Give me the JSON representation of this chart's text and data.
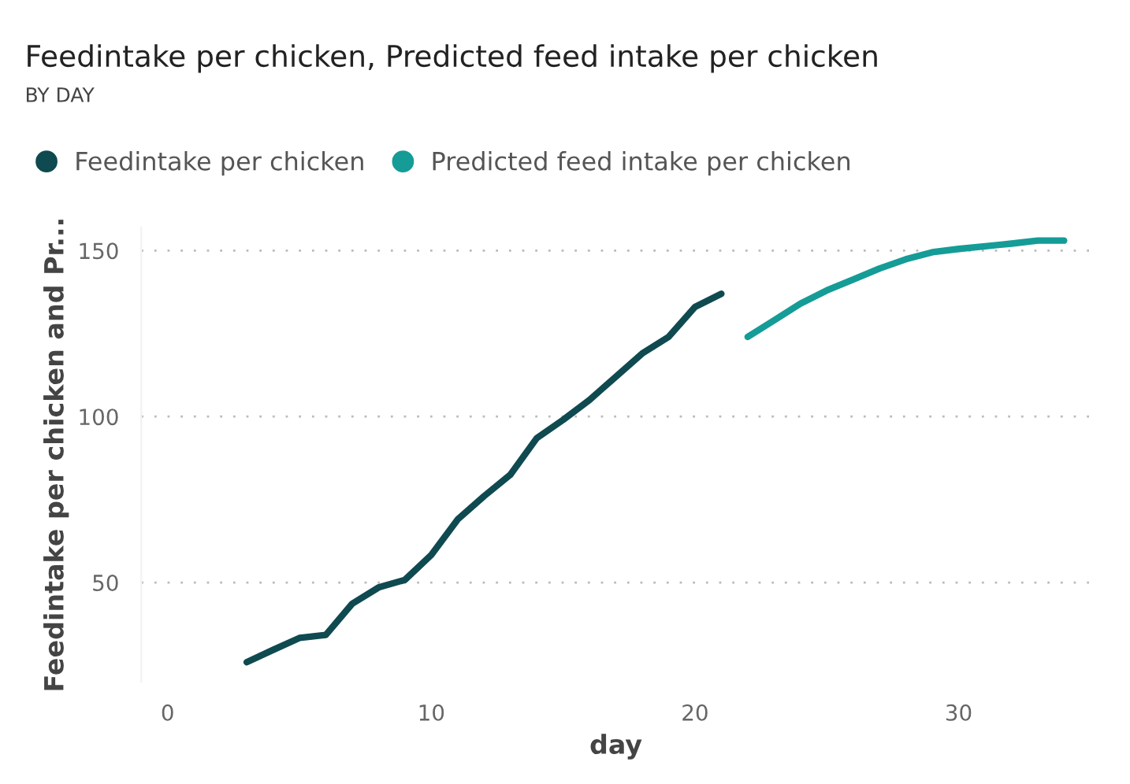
{
  "chart_data": {
    "type": "line",
    "title": "Feedintake per chicken, Predicted feed intake per chicken",
    "subtitle": "BY DAY",
    "xlabel": "day",
    "ylabel": "Feedintake per chicken and Pr...",
    "series": [
      {
        "name": "Feedintake per chicken",
        "color": "#0f4a50",
        "x": [
          3,
          4,
          5,
          6,
          7,
          8,
          9,
          10,
          11,
          12,
          13,
          14,
          15,
          16,
          17,
          18,
          19,
          20,
          21
        ],
        "values": [
          26,
          29.7,
          33.3,
          34.2,
          43.6,
          48.5,
          50.8,
          58.3,
          69,
          76,
          82.5,
          93.5,
          99,
          105,
          112,
          119,
          124,
          133,
          137
        ]
      },
      {
        "name": "Predicted feed intake per chicken",
        "color": "#159c97",
        "x": [
          22,
          23,
          24,
          25,
          26,
          27,
          28,
          29,
          30,
          31,
          32,
          33,
          34
        ],
        "values": [
          124,
          129,
          134,
          138,
          141.3,
          144.6,
          147.4,
          149.5,
          150.5,
          151.3,
          152.1,
          153,
          153
        ]
      }
    ],
    "xlim": [
      -1,
      35
    ],
    "ylim": [
      20,
      157
    ],
    "xticks": [
      0,
      10,
      20,
      30
    ],
    "yticks": [
      50,
      100,
      150
    ],
    "grid": "y",
    "legend": "top left",
    "marker": "none",
    "line_style": "solid"
  }
}
